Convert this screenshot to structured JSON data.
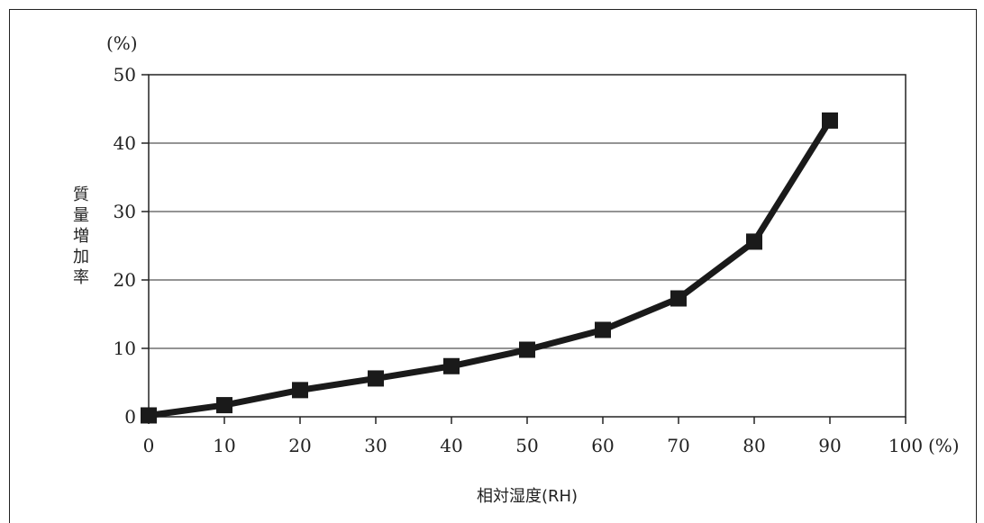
{
  "chart_data": {
    "type": "line",
    "title": "",
    "xlabel": "相対湿度(RH)",
    "ylabel": "質量増加率",
    "x_unit": "(%)",
    "y_unit": "(%)",
    "xlim": [
      0,
      100
    ],
    "ylim": [
      0,
      50
    ],
    "x_ticks": [
      0,
      10,
      20,
      30,
      40,
      50,
      60,
      70,
      80,
      90,
      100
    ],
    "y_ticks": [
      0,
      10,
      20,
      30,
      40,
      50
    ],
    "grid": "horizontal",
    "legend": "none",
    "line_color": "#1a1a1a",
    "series": [
      {
        "x": [
          0,
          10,
          20,
          30,
          40,
          50,
          60,
          70,
          80,
          90
        ],
        "y": [
          0.2,
          1.7,
          3.9,
          5.6,
          7.4,
          9.8,
          12.7,
          17.3,
          25.6,
          43.3
        ]
      }
    ]
  }
}
